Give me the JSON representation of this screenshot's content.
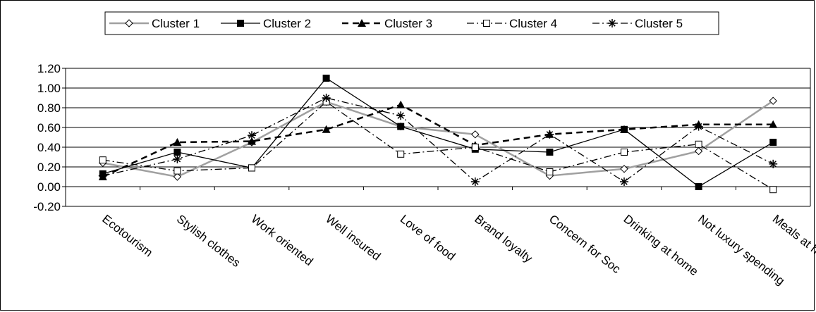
{
  "chart_data": {
    "type": "line",
    "title": "",
    "xlabel": "",
    "ylabel": "",
    "ylim": [
      -0.2,
      1.2
    ],
    "y_ticks": [
      "1.20",
      "1.00",
      "0.80",
      "0.60",
      "0.40",
      "0.20",
      "0.00",
      "-0.20"
    ],
    "grid": "horizontal",
    "legend_position": "top",
    "categories": [
      "Ecotourism",
      "Stylish clothes",
      "Work oriented",
      "Well insured",
      "Love of food",
      "Brand loyalty",
      "Concern for Soc",
      "Drinking at home",
      "Not luxury spending",
      "Meals at home"
    ],
    "series": [
      {
        "name": "Cluster 1",
        "marker": "diamond-open",
        "line": "solid",
        "color": "#a0a0a0",
        "values": [
          0.24,
          0.1,
          0.45,
          0.86,
          0.61,
          0.53,
          0.11,
          0.18,
          0.36,
          0.87
        ]
      },
      {
        "name": "Cluster 2",
        "marker": "square-filled",
        "line": "solid",
        "color": "#000000",
        "values": [
          0.13,
          0.35,
          0.19,
          1.1,
          0.61,
          0.38,
          0.35,
          0.58,
          0.0,
          0.45
        ]
      },
      {
        "name": "Cluster 3",
        "marker": "triangle-filled",
        "line": "dashed",
        "color": "#000000",
        "values": [
          0.1,
          0.45,
          0.46,
          0.58,
          0.83,
          0.42,
          0.53,
          0.58,
          0.63,
          0.63
        ]
      },
      {
        "name": "Cluster 4",
        "marker": "square-open",
        "line": "dash-dot",
        "color": "#000000",
        "values": [
          0.27,
          0.16,
          0.19,
          0.86,
          0.33,
          0.4,
          0.15,
          0.35,
          0.43,
          -0.03
        ]
      },
      {
        "name": "Cluster 5",
        "marker": "asterisk",
        "line": "dash-dot",
        "color": "#000000",
        "values": [
          0.11,
          0.28,
          0.52,
          0.9,
          0.72,
          0.05,
          0.53,
          0.05,
          0.61,
          0.23
        ]
      }
    ]
  }
}
